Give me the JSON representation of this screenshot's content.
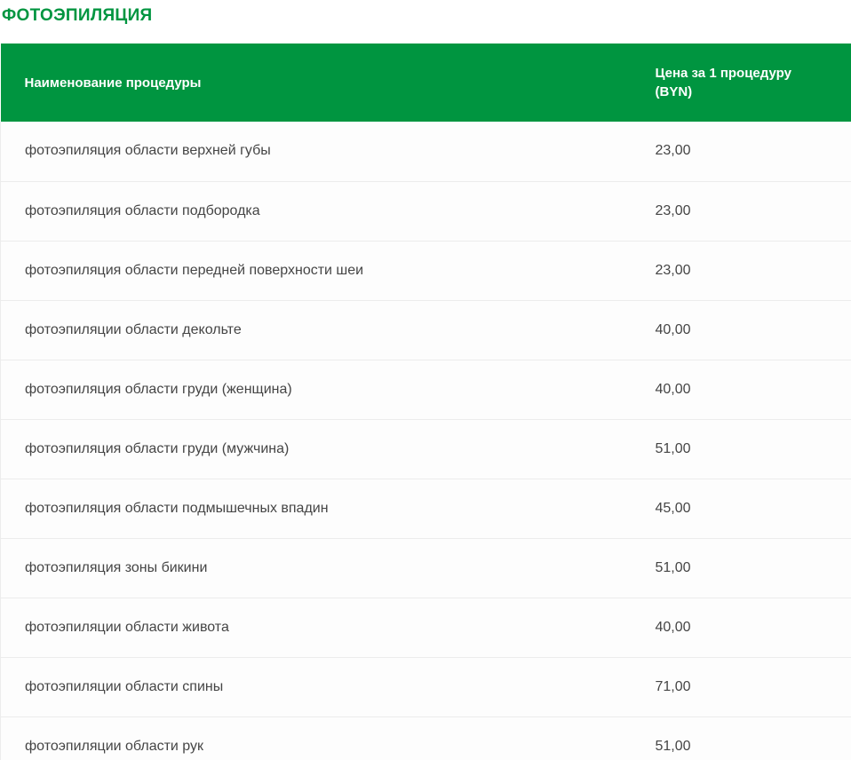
{
  "page": {
    "title": "ФОТОЭПИЛЯЦИЯ"
  },
  "table": {
    "columns": [
      {
        "label": "Наименование процедуры"
      },
      {
        "label": "Цена за 1 процедуру (BYN)"
      }
    ],
    "rows": [
      {
        "name": "фотоэпиляция области верхней губы",
        "price": "23,00"
      },
      {
        "name": "фотоэпиляция области подбородка",
        "price": "23,00"
      },
      {
        "name": "фотоэпиляция области передней поверхности шеи",
        "price": "23,00"
      },
      {
        "name": "фотоэпиляции области декольте",
        "price": "40,00"
      },
      {
        "name": "фотоэпиляция области груди (женщина)",
        "price": "40,00"
      },
      {
        "name": "фотоэпиляция области груди (мужчина)",
        "price": "51,00"
      },
      {
        "name": "фотоэпиляция области подмышечных впадин",
        "price": "45,00"
      },
      {
        "name": "фотоэпиляция зоны бикини",
        "price": "51,00"
      },
      {
        "name": "фотоэпиляции области живота",
        "price": "40,00"
      },
      {
        "name": "фотоэпиляции области спины",
        "price": "71,00"
      },
      {
        "name": "фотоэпиляции области рук",
        "price": "51,00"
      }
    ]
  },
  "colors": {
    "accent_green": "#009540",
    "header_text": "#ffffff",
    "body_text": "#454545",
    "row_background": "#fdfdfd",
    "row_border": "#ececec"
  }
}
